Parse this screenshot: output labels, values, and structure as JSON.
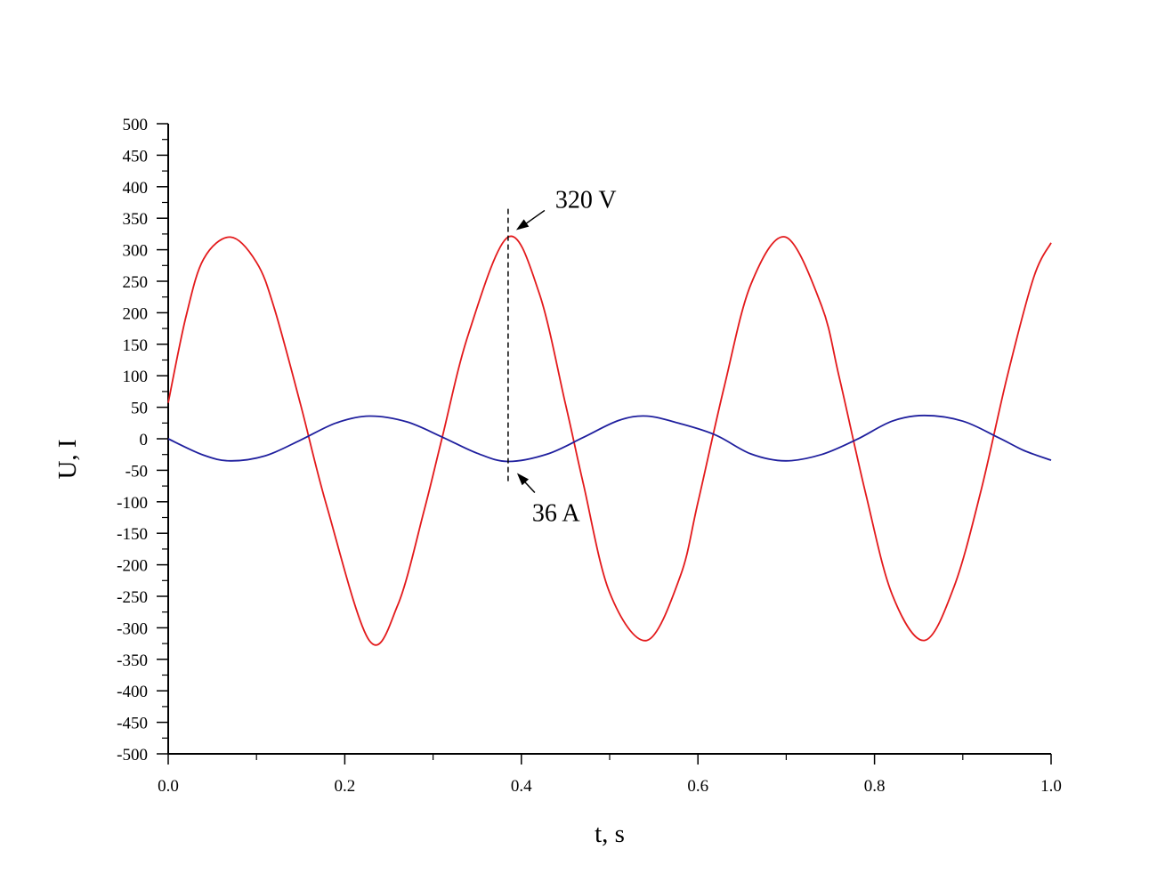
{
  "chart_data": {
    "type": "line",
    "title": "",
    "xlabel": "t, s",
    "ylabel": "U, I",
    "xlim": [
      0.0,
      1.0
    ],
    "ylim": [
      -500,
      500
    ],
    "x_ticks": [
      0.0,
      0.2,
      0.4,
      0.6,
      0.8,
      1.0
    ],
    "x_tick_labels": [
      "0.0",
      "0.2",
      "0.4",
      "0.6",
      "0.8",
      "1.0"
    ],
    "y_ticks": [
      -500,
      -450,
      -400,
      -350,
      -300,
      -250,
      -200,
      -150,
      -100,
      -50,
      0,
      50,
      100,
      150,
      200,
      250,
      300,
      350,
      400,
      450,
      500
    ],
    "y_tick_labels": [
      "-500",
      "-450",
      "-400",
      "-350",
      "-300",
      "-250",
      "-200",
      "-150",
      "-100",
      "-50",
      "0",
      "50",
      "100",
      "150",
      "200",
      "250",
      "300",
      "350",
      "400",
      "450",
      "500"
    ],
    "grid": false,
    "legend": "none",
    "series": [
      {
        "color": "#e31a1c",
        "x": [
          0.0,
          0.02,
          0.04,
          0.0705,
          0.1,
          0.12,
          0.15,
          0.18,
          0.2277,
          0.26,
          0.29,
          0.31,
          0.34,
          0.3849,
          0.42,
          0.45,
          0.47,
          0.5,
          0.5421,
          0.58,
          0.6,
          0.63,
          0.66,
          0.6993,
          0.74,
          0.76,
          0.79,
          0.82,
          0.8565,
          0.89,
          0.92,
          0.95,
          0.98,
          1.0
        ],
        "y": [
          57,
          193,
          285,
          320,
          280,
          208,
          54,
          -109,
          -320,
          -264,
          -113,
          0,
          166,
          320,
          232,
          55,
          -70,
          -244,
          -320,
          -218,
          -101,
          84,
          245,
          320,
          211,
          98,
          -87,
          -247,
          -320,
          -235,
          -86,
          97,
          255,
          311
        ]
      },
      {
        "color": "#1f1f9e",
        "x": [
          0.0,
          0.04,
          0.0705,
          0.11,
          0.15,
          0.19,
          0.2277,
          0.27,
          0.31,
          0.35,
          0.3849,
          0.43,
          0.47,
          0.51,
          0.5421,
          0.58,
          0.62,
          0.66,
          0.6993,
          0.74,
          0.78,
          0.82,
          0.8565,
          0.9,
          0.94,
          0.97,
          1.0
        ],
        "y": [
          0,
          -26,
          -35,
          -27,
          -2,
          25,
          36,
          27,
          3,
          -23,
          -36,
          -24,
          2,
          29,
          36,
          24,
          6,
          -24,
          -35,
          -25,
          -1,
          28,
          37,
          28,
          2,
          -19,
          -34
        ]
      }
    ],
    "annotations": [
      {
        "text": "320 V",
        "x": 0.385,
        "y": 320
      },
      {
        "text": "36 A",
        "x": 0.385,
        "y": -36
      }
    ],
    "reference_lines": [
      {
        "orientation": "vertical",
        "x": 0.385,
        "y_from": -70,
        "y_to": 365,
        "style": "dashed"
      }
    ]
  }
}
